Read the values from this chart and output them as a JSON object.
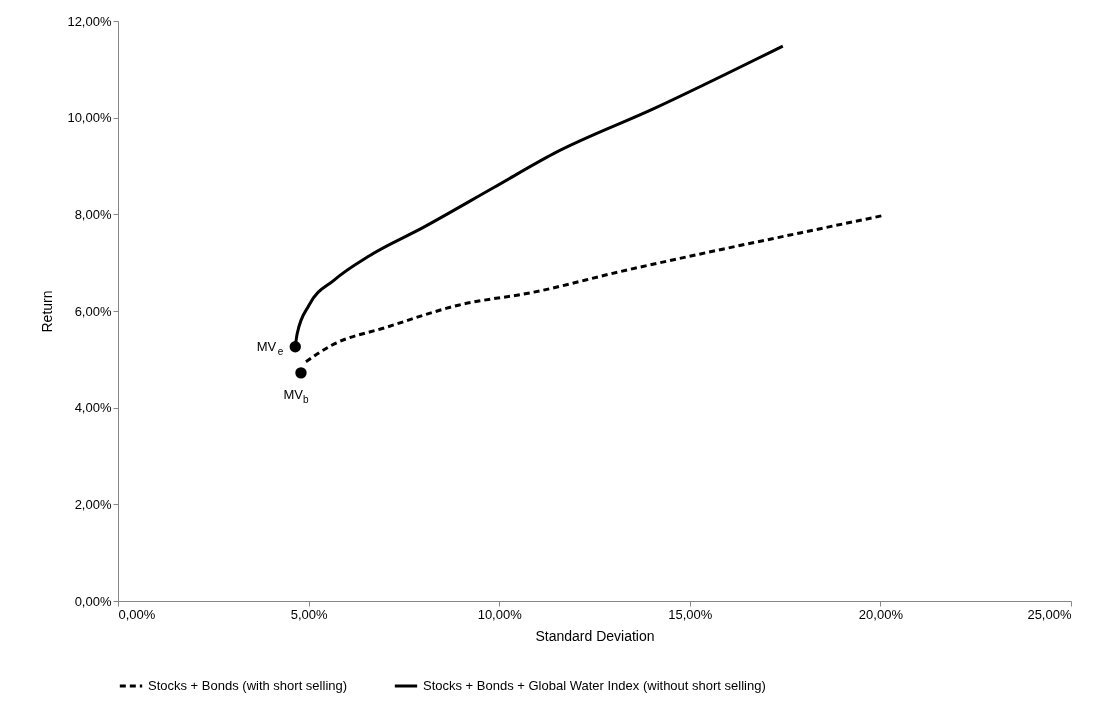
{
  "chart_data": {
    "type": "line",
    "xlabel": "Standard Deviation",
    "ylabel": "Return",
    "xlim": [
      0,
      25
    ],
    "xticks": [
      {
        "value": 0,
        "label": "0,00%"
      },
      {
        "value": 5,
        "label": "5,00%"
      },
      {
        "value": 10,
        "label": "10,00%"
      },
      {
        "value": 15,
        "label": "15,00%"
      },
      {
        "value": 20,
        "label": "20,00%"
      },
      {
        "value": 25,
        "label": "25,00%"
      }
    ],
    "ylim": [
      0,
      12
    ],
    "yticks": [
      {
        "value": 0,
        "label": "0,00%"
      },
      {
        "value": 2,
        "label": "2,00%"
      },
      {
        "value": 4,
        "label": "4,00%"
      },
      {
        "value": 6,
        "label": "6,00%"
      },
      {
        "value": 8,
        "label": "8,00%"
      },
      {
        "value": 10,
        "label": "10,00%"
      },
      {
        "value": 12,
        "label": "12,00%"
      }
    ],
    "grid": false,
    "legend": "bottom",
    "series": [
      {
        "name": "Stocks + Bonds (with short selling)",
        "color": "#000000",
        "line_style": "dashed",
        "marker": "none",
        "x": [
          4.93,
          5.58,
          7.07,
          8.93,
          10.91,
          13.2,
          15.51,
          17.8,
          20.1
        ],
        "values": [
          4.95,
          5.28,
          5.67,
          6.12,
          6.39,
          6.82,
          7.22,
          7.6,
          7.98
        ]
      },
      {
        "name": "Stocks + Bonds + Global Water Index (without short selling)",
        "color": "#000000",
        "line_style": "solid",
        "marker": "none",
        "x": [
          4.65,
          4.7,
          5.01,
          5.67,
          6.61,
          8.01,
          9.87,
          11.44,
          14.07,
          17.44
        ],
        "values": [
          5.26,
          5.53,
          6.12,
          6.64,
          7.15,
          7.73,
          8.56,
          9.26,
          10.19,
          11.48
        ]
      },
      {
        "color": "#000000",
        "type": "scatter",
        "marker": "circle",
        "x": [
          4.65,
          4.8
        ],
        "values": [
          5.26,
          4.72
        ]
      }
    ],
    "annotations": [
      {
        "text": "MV$_{e}$",
        "x": 4.65,
        "y": 5.26
      },
      {
        "text": "MV$_{b}$",
        "x": 4.8,
        "y": 4.72
      }
    ]
  }
}
